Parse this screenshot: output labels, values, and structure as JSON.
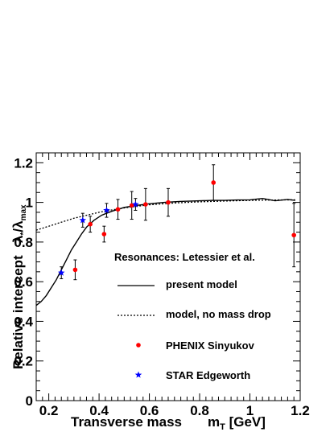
{
  "chart_data": {
    "type": "scatter",
    "xlabel": "Transverse mass",
    "xlabel_symbol": "m",
    "xlabel_sub": "T",
    "xlabel_unit": " [GeV]",
    "ylabel_main": "Relative intercept",
    "ylabel_ratio": {
      "num": "λ",
      "num_sub": "*",
      "den": "λ",
      "den_sub": "max"
    },
    "xlim": [
      0.15,
      1.2
    ],
    "ylim": [
      0,
      1.25
    ],
    "xticks": [
      {
        "v": 0.2,
        "label": "0.2"
      },
      {
        "v": 0.4,
        "label": "0.4"
      },
      {
        "v": 0.6,
        "label": "0.6"
      },
      {
        "v": 0.8,
        "label": "0.8"
      },
      {
        "v": 1.0,
        "label": "1"
      },
      {
        "v": 1.2,
        "label": "1.2"
      }
    ],
    "yticks": [
      {
        "v": 0,
        "label": "0"
      },
      {
        "v": 0.2,
        "label": "0.2"
      },
      {
        "v": 0.4,
        "label": "0.4"
      },
      {
        "v": 0.6,
        "label": "0.6"
      },
      {
        "v": 0.8,
        "label": "0.8"
      },
      {
        "v": 1.0,
        "label": "1"
      },
      {
        "v": 1.2,
        "label": "1.2"
      }
    ],
    "annotation": "Resonances: Letessier et al.",
    "series": [
      {
        "name": "present model",
        "kind": "line",
        "style": "solid",
        "x": [
          0.15,
          0.17,
          0.19,
          0.21,
          0.23,
          0.25,
          0.27,
          0.29,
          0.31,
          0.33,
          0.35,
          0.38,
          0.41,
          0.45,
          0.5,
          0.55,
          0.6,
          0.66,
          0.72,
          0.8,
          0.85,
          0.9,
          0.95,
          1.0,
          1.05,
          1.1,
          1.15,
          1.18
        ],
        "y": [
          0.48,
          0.5,
          0.53,
          0.57,
          0.61,
          0.66,
          0.71,
          0.76,
          0.8,
          0.84,
          0.875,
          0.91,
          0.935,
          0.955,
          0.975,
          0.985,
          0.993,
          1.0,
          1.005,
          1.008,
          1.01,
          1.01,
          1.012,
          1.013,
          1.02,
          1.008,
          1.015,
          1.01
        ]
      },
      {
        "name": "model, no mass drop",
        "kind": "line",
        "style": "dotted",
        "x": [
          0.15,
          0.2,
          0.25,
          0.3,
          0.35,
          0.4,
          0.45,
          0.5,
          0.55,
          0.6,
          0.7,
          0.8,
          0.9,
          1.0,
          1.1,
          1.18
        ],
        "y": [
          0.86,
          0.88,
          0.9,
          0.92,
          0.935,
          0.95,
          0.962,
          0.972,
          0.98,
          0.988,
          0.997,
          1.003,
          1.007,
          1.01,
          1.012,
          1.013
        ]
      },
      {
        "name": "PHENIX Sinyukov",
        "kind": "points",
        "marker": "circle",
        "color": "#ff0000",
        "points": [
          {
            "x": 0.305,
            "y": 0.66,
            "err": 0.05
          },
          {
            "x": 0.365,
            "y": 0.89,
            "err": 0.04
          },
          {
            "x": 0.42,
            "y": 0.84,
            "err": 0.04
          },
          {
            "x": 0.475,
            "y": 0.965,
            "err": 0.05
          },
          {
            "x": 0.53,
            "y": 0.985,
            "err": 0.07
          },
          {
            "x": 0.585,
            "y": 0.99,
            "err": 0.08
          },
          {
            "x": 0.675,
            "y": 1.0,
            "err": 0.07
          },
          {
            "x": 0.855,
            "y": 1.1,
            "err": 0.09
          },
          {
            "x": 1.175,
            "y": 0.835,
            "err": 0.16
          }
        ]
      },
      {
        "name": "STAR Edgeworth",
        "kind": "points",
        "marker": "star",
        "color": "#0000ff",
        "points": [
          {
            "x": 0.25,
            "y": 0.645,
            "err": 0.03
          },
          {
            "x": 0.335,
            "y": 0.91,
            "err": 0.035
          },
          {
            "x": 0.43,
            "y": 0.96,
            "err": 0.035
          },
          {
            "x": 0.545,
            "y": 0.99,
            "err": 0.03
          }
        ]
      }
    ],
    "legend_placement": "center-right"
  }
}
